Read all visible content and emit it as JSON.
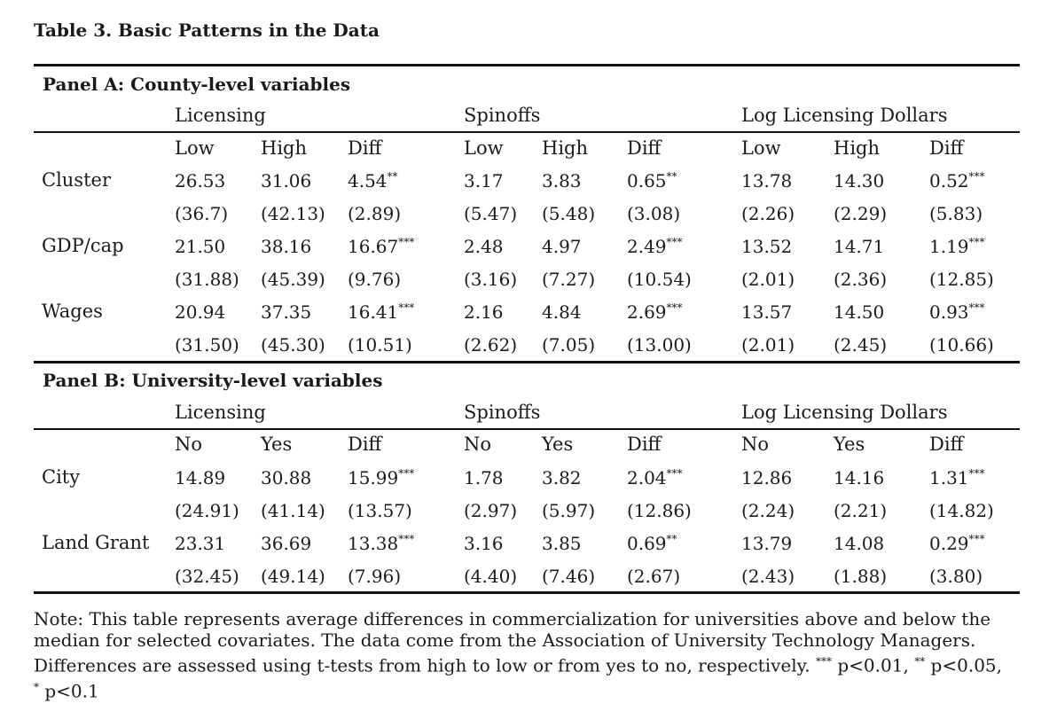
{
  "title": "Table 3. Basic Patterns in the Data",
  "panels": [
    {
      "title": "Panel A: County-level variables",
      "groups": [
        "Licensing",
        "Spinoffs",
        "Log Licensing Dollars"
      ],
      "subheaders": [
        "Low",
        "High",
        "Diff",
        "Low",
        "High",
        "Diff",
        "Low",
        "High",
        "Diff"
      ],
      "rows": [
        {
          "label": "Cluster",
          "values": [
            "26.53",
            "31.06",
            "4.54",
            "3.17",
            "3.83",
            "0.65",
            "13.78",
            "14.30",
            "0.52"
          ],
          "stars": [
            "",
            "",
            "**",
            "",
            "",
            "**",
            "",
            "",
            "***"
          ],
          "se": [
            "(36.7)",
            "(42.13)",
            "(2.89)",
            "(5.47)",
            "(5.48)",
            "(3.08)",
            "(2.26)",
            "(2.29)",
            "(5.83)"
          ]
        },
        {
          "label": "GDP/cap",
          "values": [
            "21.50",
            "38.16",
            "16.67",
            "2.48",
            "4.97",
            "2.49",
            "13.52",
            "14.71",
            "1.19"
          ],
          "stars": [
            "",
            "",
            "***",
            "",
            "",
            "***",
            "",
            "",
            "***"
          ],
          "se": [
            "(31.88)",
            "(45.39)",
            "(9.76)",
            "(3.16)",
            "(7.27)",
            "(10.54)",
            "(2.01)",
            "(2.36)",
            "(12.85)"
          ]
        },
        {
          "label": "Wages",
          "values": [
            "20.94",
            "37.35",
            "16.41",
            "2.16",
            "4.84",
            "2.69",
            "13.57",
            "14.50",
            "0.93"
          ],
          "stars": [
            "",
            "",
            "***",
            "",
            "",
            "***",
            "",
            "",
            "***"
          ],
          "se": [
            "(31.50)",
            "(45.30)",
            "(10.51)",
            "(2.62)",
            "(7.05)",
            "(13.00)",
            "(2.01)",
            "(2.45)",
            "(10.66)"
          ]
        }
      ]
    },
    {
      "title": "Panel B: University-level variables",
      "groups": [
        "Licensing",
        "Spinoffs",
        "Log Licensing Dollars"
      ],
      "subheaders": [
        "No",
        "Yes",
        "Diff",
        "No",
        "Yes",
        "Diff",
        "No",
        "Yes",
        "Diff"
      ],
      "rows": [
        {
          "label": "City",
          "values": [
            "14.89",
            "30.88",
            "15.99",
            "1.78",
            "3.82",
            "2.04",
            "12.86",
            "14.16",
            "1.31"
          ],
          "stars": [
            "",
            "",
            "***",
            "",
            "",
            "***",
            "",
            "",
            "***"
          ],
          "se": [
            "(24.91)",
            "(41.14)",
            "(13.57)",
            "(2.97)",
            "(5.97)",
            "(12.86)",
            "(2.24)",
            "(2.21)",
            "(14.82)"
          ]
        },
        {
          "label": "Land Grant",
          "values": [
            "23.31",
            "36.69",
            "13.38",
            "3.16",
            "3.85",
            "0.69",
            "13.79",
            "14.08",
            "0.29"
          ],
          "stars": [
            "",
            "",
            "***",
            "",
            "",
            "**",
            "",
            "",
            "***"
          ],
          "se": [
            "(32.45)",
            "(49.14)",
            "(7.96)",
            "(4.40)",
            "(7.46)",
            "(2.67)",
            "(2.43)",
            "(1.88)",
            "(3.80)"
          ]
        }
      ]
    }
  ],
  "note": {
    "line1": "Note: This table represents average differences in commercialization for universities above and below the",
    "line2": "median for selected covariates. The data come from the Association of University Technology Managers.",
    "line3_prefix": "Differences are assessed using t-tests from high to low or from yes to no, respectively.",
    "sig1_stars": "***",
    "sig1_text": "p<0.01,",
    "sig2_stars": "**",
    "sig2_text": "p<0.05,",
    "sig3_stars": "*",
    "sig3_text": "p<0.1"
  }
}
